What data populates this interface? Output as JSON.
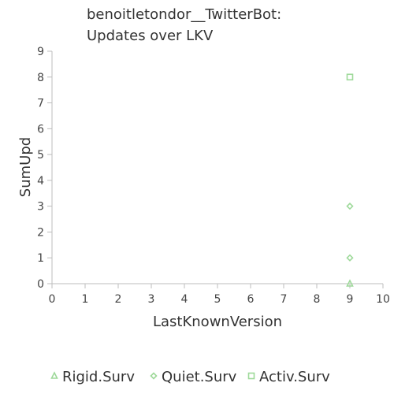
{
  "chart_data": {
    "type": "scatter",
    "title_lines": [
      "benoitletondor__TwitterBot:",
      "Updates over LKV"
    ],
    "xlabel": "LastKnownVersion",
    "ylabel": "SumUpd",
    "xlim": [
      0,
      10
    ],
    "ylim": [
      0,
      9
    ],
    "x_ticks": [
      "0",
      "1",
      "2",
      "3",
      "4",
      "5",
      "6",
      "7",
      "8",
      "9",
      "10"
    ],
    "y_ticks": [
      "0",
      "1",
      "2",
      "3",
      "4",
      "5",
      "6",
      "7",
      "8",
      "9"
    ],
    "grid": false,
    "legend_position": "bottom",
    "series": [
      {
        "name": "Rigid.Surv",
        "marker": "triangle",
        "color": "#9ed99a",
        "points": [
          {
            "x": 9,
            "y": 0
          }
        ]
      },
      {
        "name": "Quiet.Surv",
        "marker": "diamond",
        "color": "#9ed99a",
        "points": [
          {
            "x": 9,
            "y": 1
          },
          {
            "x": 9,
            "y": 3
          }
        ]
      },
      {
        "name": "Activ.Surv",
        "marker": "square",
        "color": "#9ed99a",
        "points": [
          {
            "x": 9,
            "y": 8
          }
        ]
      }
    ]
  }
}
